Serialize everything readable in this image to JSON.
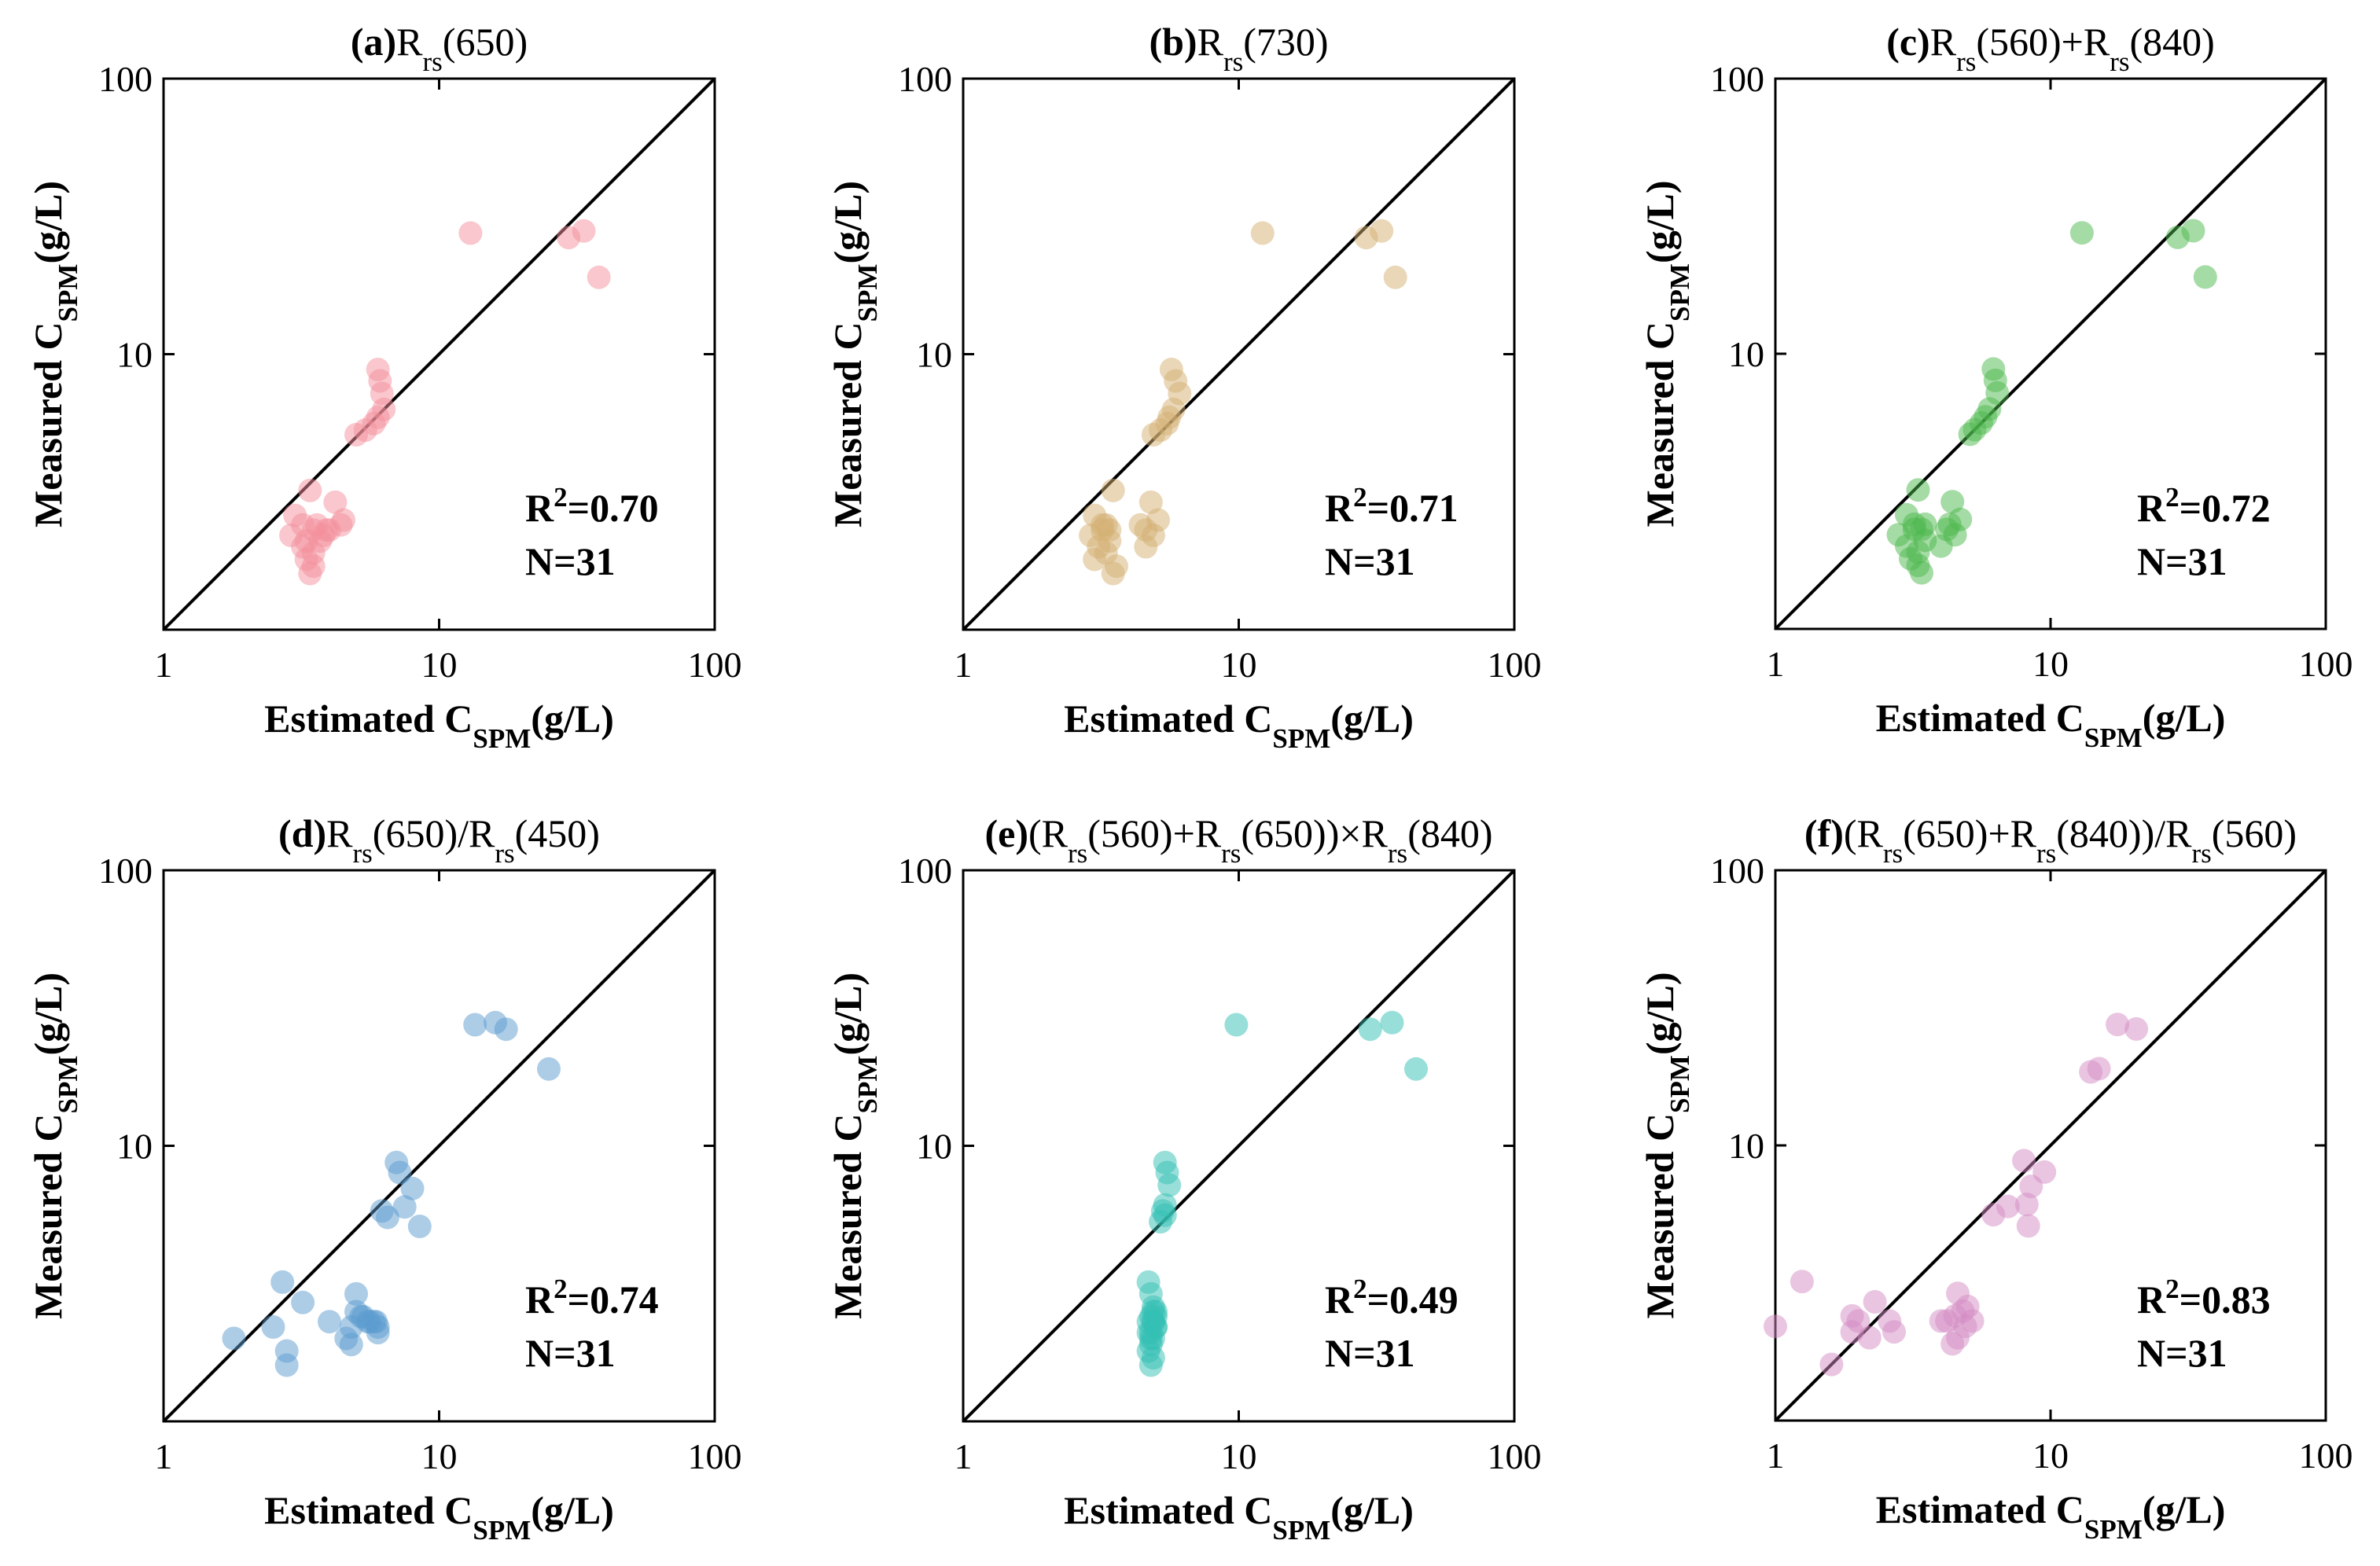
{
  "chart_data": [
    {
      "type": "scatter",
      "panel_label": "(a)",
      "title_parts": [
        {
          "t": "(a)",
          "s": "bold"
        },
        {
          "t": "R",
          "s": "normal"
        },
        {
          "t": "rs",
          "s": "sub"
        },
        {
          "t": "(650)",
          "s": "normal"
        }
      ],
      "xlabel": "Estimated C",
      "xlabel_sub": "SPM",
      "xlabel_unit": "(g/L)",
      "ylabel": "Measured C",
      "ylabel_sub": "SPM",
      "ylabel_unit": "(g/L)",
      "xscale": "log",
      "yscale": "log",
      "xlim": [
        1,
        100
      ],
      "ylim": [
        1,
        100
      ],
      "xticks": [
        {
          "v": 1,
          "label": "1"
        },
        {
          "v": 10,
          "label": "10"
        },
        {
          "v": 100,
          "label": "100"
        }
      ],
      "yticks": [
        {
          "v": 10,
          "label": "10"
        },
        {
          "v": 100,
          "label": "100"
        }
      ],
      "r2_prefix": "R",
      "r2_exp": "2",
      "r2_value": "=0.70",
      "n_text": "N=31",
      "color": "#f4909c",
      "x": [
        13.0,
        29.5,
        33.5,
        38.0,
        6.0,
        6.1,
        6.2,
        6.3,
        6.0,
        5.8,
        5.4,
        5.0,
        3.4,
        4.2,
        3.0,
        3.2,
        3.5,
        3.6,
        4.0,
        3.8,
        4.5,
        4.4,
        3.2,
        3.3,
        3.5,
        3.7,
        2.9,
        3.9,
        3.5,
        3.3,
        3.4
      ],
      "y": [
        27.5,
        26.5,
        28.0,
        19.0,
        8.8,
        8.0,
        7.2,
        6.3,
        5.9,
        5.6,
        5.3,
        5.1,
        3.2,
        2.9,
        2.6,
        2.4,
        2.3,
        2.4,
        2.3,
        2.2,
        2.5,
        2.4,
        2.0,
        1.8,
        1.9,
        2.1,
        2.2,
        2.3,
        1.7,
        2.1,
        1.6
      ]
    },
    {
      "type": "scatter",
      "panel_label": "(b)",
      "title_parts": [
        {
          "t": "(b)",
          "s": "bold"
        },
        {
          "t": "R",
          "s": "normal"
        },
        {
          "t": "rs",
          "s": "sub"
        },
        {
          "t": "(730)",
          "s": "normal"
        }
      ],
      "xlabel": "Estimated C",
      "xlabel_sub": "SPM",
      "xlabel_unit": "(g/L)",
      "ylabel": "Measured C",
      "ylabel_sub": "SPM",
      "ylabel_unit": "(g/L)",
      "xscale": "log",
      "yscale": "log",
      "xlim": [
        1,
        100
      ],
      "ylim": [
        1,
        100
      ],
      "xticks": [
        {
          "v": 1,
          "label": "1"
        },
        {
          "v": 10,
          "label": "10"
        },
        {
          "v": 100,
          "label": "100"
        }
      ],
      "yticks": [
        {
          "v": 10,
          "label": "10"
        },
        {
          "v": 100,
          "label": "100"
        }
      ],
      "r2_prefix": "R",
      "r2_exp": "2",
      "r2_value": "=0.71",
      "n_text": "N=31",
      "color": "#d4b071",
      "x": [
        12.2,
        29.0,
        33.0,
        37.0,
        5.7,
        5.9,
        6.1,
        5.8,
        5.6,
        5.5,
        5.2,
        4.9,
        3.5,
        4.8,
        3.0,
        3.2,
        3.4,
        3.3,
        4.6,
        4.9,
        5.1,
        4.4,
        3.1,
        3.0,
        3.3,
        3.4,
        2.9,
        4.6,
        3.6,
        3.2,
        3.5
      ],
      "y": [
        27.5,
        26.5,
        28.0,
        19.0,
        8.8,
        8.0,
        7.2,
        6.3,
        5.9,
        5.6,
        5.3,
        5.1,
        3.2,
        2.9,
        2.6,
        2.4,
        2.3,
        2.4,
        2.3,
        2.2,
        2.5,
        2.4,
        2.0,
        1.8,
        1.9,
        2.1,
        2.2,
        2.0,
        1.7,
        2.3,
        1.6
      ]
    },
    {
      "type": "scatter",
      "panel_label": "(c)",
      "title_parts": [
        {
          "t": "(c)",
          "s": "bold"
        },
        {
          "t": "R",
          "s": "normal"
        },
        {
          "t": "rs",
          "s": "sub"
        },
        {
          "t": "(560)+R",
          "s": "normal"
        },
        {
          "t": "rs",
          "s": "sub"
        },
        {
          "t": "(840)",
          "s": "normal"
        }
      ],
      "xlabel": "Estimated C",
      "xlabel_sub": "SPM",
      "xlabel_unit": "(g/L)",
      "ylabel": "Measured C",
      "ylabel_sub": "SPM",
      "ylabel_unit": "(g/L)",
      "xscale": "log",
      "yscale": "log",
      "xlim": [
        1,
        100
      ],
      "ylim": [
        1,
        100
      ],
      "xticks": [
        {
          "v": 1,
          "label": "1"
        },
        {
          "v": 10,
          "label": "10"
        },
        {
          "v": 100,
          "label": "100"
        }
      ],
      "yticks": [
        {
          "v": 10,
          "label": "10"
        },
        {
          "v": 100,
          "label": "100"
        }
      ],
      "r2_prefix": "R",
      "r2_exp": "2",
      "r2_value": "=0.72",
      "n_text": "N=31",
      "color": "#4cb84c",
      "x": [
        13.0,
        29.0,
        33.0,
        36.5,
        6.2,
        6.3,
        6.4,
        6.0,
        5.8,
        5.6,
        5.3,
        5.1,
        3.3,
        4.4,
        3.0,
        3.2,
        3.4,
        3.5,
        4.2,
        4.5,
        4.7,
        4.3,
        3.0,
        3.1,
        3.3,
        3.5,
        2.8,
        4.0,
        3.3,
        3.2,
        3.4
      ],
      "y": [
        27.5,
        26.5,
        28.0,
        19.0,
        8.8,
        8.0,
        7.2,
        6.3,
        5.9,
        5.6,
        5.3,
        5.1,
        3.2,
        2.9,
        2.6,
        2.4,
        2.3,
        2.4,
        2.3,
        2.2,
        2.5,
        2.4,
        2.0,
        1.8,
        1.9,
        2.1,
        2.2,
        2.0,
        1.7,
        2.3,
        1.6
      ]
    },
    {
      "type": "scatter",
      "panel_label": "(d)",
      "title_parts": [
        {
          "t": "(d)",
          "s": "bold"
        },
        {
          "t": "R",
          "s": "normal"
        },
        {
          "t": "rs",
          "s": "sub"
        },
        {
          "t": "(650)/R",
          "s": "normal"
        },
        {
          "t": "rs",
          "s": "sub"
        },
        {
          "t": "(450)",
          "s": "normal"
        }
      ],
      "xlabel": "Estimated C",
      "xlabel_sub": "SPM",
      "xlabel_unit": "(g/L)",
      "ylabel": "Measured C",
      "ylabel_sub": "SPM",
      "ylabel_unit": "(g/L)",
      "xscale": "log",
      "yscale": "log",
      "xlim": [
        1,
        100
      ],
      "ylim": [
        1,
        100
      ],
      "xticks": [
        {
          "v": 1,
          "label": "1"
        },
        {
          "v": 10,
          "label": "10"
        },
        {
          "v": 100,
          "label": "100"
        }
      ],
      "yticks": [
        {
          "v": 10,
          "label": "10"
        },
        {
          "v": 100,
          "label": "100"
        }
      ],
      "r2_prefix": "R",
      "r2_exp": "2",
      "r2_value": "=0.74",
      "n_text": "N=31",
      "color": "#5b9bd0",
      "x": [
        13.5,
        16.0,
        17.5,
        25.0,
        7.0,
        7.2,
        8.0,
        7.5,
        6.2,
        6.5,
        8.5,
        2.7,
        3.2,
        2.5,
        1.8,
        2.8,
        2.8,
        4.0,
        4.6,
        4.8,
        5.0,
        5.3,
        5.6,
        5.8,
        6.0,
        5.0,
        6.0,
        4.8,
        5.2,
        5.5,
        5.9
      ],
      "y": [
        27.5,
        28.0,
        26.5,
        19.0,
        8.7,
        8.0,
        7.0,
        6.0,
        5.8,
        5.5,
        5.1,
        3.2,
        2.7,
        2.2,
        2.0,
        1.8,
        1.6,
        2.3,
        2.0,
        1.9,
        2.5,
        2.4,
        2.3,
        2.3,
        2.2,
        2.9,
        2.1,
        2.2,
        2.4,
        2.3,
        2.3
      ]
    },
    {
      "type": "scatter",
      "panel_label": "(e)",
      "title_parts": [
        {
          "t": "(e)",
          "s": "bold"
        },
        {
          "t": "(R",
          "s": "normal"
        },
        {
          "t": "rs",
          "s": "sub"
        },
        {
          "t": "(560)+R",
          "s": "normal"
        },
        {
          "t": "rs",
          "s": "sub"
        },
        {
          "t": "(650))×R",
          "s": "normal"
        },
        {
          "t": "rs",
          "s": "sub"
        },
        {
          "t": "(840)",
          "s": "normal"
        }
      ],
      "xlabel": "Estimated C",
      "xlabel_sub": "SPM",
      "xlabel_unit": "(g/L)",
      "ylabel": "Measured C",
      "ylabel_sub": "SPM",
      "ylabel_unit": "(g/L)",
      "xscale": "log",
      "yscale": "log",
      "xlim": [
        1,
        100
      ],
      "ylim": [
        1,
        100
      ],
      "xticks": [
        {
          "v": 1,
          "label": "1"
        },
        {
          "v": 10,
          "label": "10"
        },
        {
          "v": 100,
          "label": "100"
        }
      ],
      "yticks": [
        {
          "v": 10,
          "label": "10"
        },
        {
          "v": 100,
          "label": "100"
        }
      ],
      "r2_prefix": "R",
      "r2_exp": "2",
      "r2_value": "=0.49",
      "n_text": "N=31",
      "color": "#33bfb3",
      "x": [
        9.8,
        30.0,
        36.0,
        44.0,
        5.4,
        5.5,
        5.6,
        5.4,
        5.3,
        5.2,
        5.4,
        4.7,
        4.8,
        4.9,
        5.0,
        4.8,
        4.9,
        5.0,
        4.7,
        4.8,
        4.9,
        5.0,
        4.8,
        4.7,
        4.9,
        5.0,
        4.8,
        4.9,
        4.7,
        4.8,
        4.9
      ],
      "y": [
        27.5,
        26.5,
        28.0,
        19.0,
        8.7,
        8.0,
        7.2,
        6.1,
        5.8,
        5.3,
        5.6,
        3.2,
        2.9,
        2.6,
        2.5,
        2.4,
        2.3,
        2.2,
        2.1,
        2.0,
        2.3,
        2.4,
        1.9,
        1.8,
        1.7,
        2.2,
        2.1,
        2.5,
        2.3,
        1.6,
        2.0
      ]
    },
    {
      "type": "scatter",
      "panel_label": "(f)",
      "title_parts": [
        {
          "t": "(f)",
          "s": "bold"
        },
        {
          "t": "(R",
          "s": "normal"
        },
        {
          "t": "rs",
          "s": "sub"
        },
        {
          "t": "(650)+R",
          "s": "normal"
        },
        {
          "t": "rs",
          "s": "sub"
        },
        {
          "t": "(840))/R",
          "s": "normal"
        },
        {
          "t": "rs",
          "s": "sub"
        },
        {
          "t": "(560)",
          "s": "normal"
        }
      ],
      "xlabel": "Estimated C",
      "xlabel_sub": "SPM",
      "xlabel_unit": "(g/L)",
      "ylabel": "Measured C",
      "ylabel_sub": "SPM",
      "ylabel_unit": "(g/L)",
      "xscale": "log",
      "yscale": "log",
      "xlim": [
        1,
        100
      ],
      "ylim": [
        1,
        100
      ],
      "xticks": [
        {
          "v": 1,
          "label": "1"
        },
        {
          "v": 10,
          "label": "10"
        },
        {
          "v": 100,
          "label": "100"
        }
      ],
      "yticks": [
        {
          "v": 10,
          "label": "10"
        },
        {
          "v": 100,
          "label": "100"
        }
      ],
      "r2_prefix": "R",
      "r2_exp": "2",
      "r2_value": "=0.83",
      "n_text": "N=31",
      "color": "#d48cc4",
      "x": [
        17.5,
        20.5,
        14.0,
        15.0,
        8.0,
        9.5,
        8.5,
        8.2,
        7.0,
        6.2,
        8.3,
        1.25,
        1.0,
        2.3,
        1.9,
        2.0,
        2.6,
        2.2,
        1.6,
        1.9,
        2.7,
        4.6,
        5.0,
        4.0,
        4.5,
        4.8,
        4.2,
        5.2,
        4.6,
        4.9,
        4.4
      ],
      "y": [
        27.5,
        26.5,
        18.5,
        19.0,
        8.8,
        8.0,
        7.1,
        6.1,
        6.0,
        5.6,
        5.1,
        3.2,
        2.2,
        2.7,
        2.4,
        2.3,
        2.3,
        2.0,
        1.6,
        2.1,
        2.1,
        2.9,
        2.6,
        2.3,
        2.4,
        2.5,
        2.3,
        2.3,
        2.0,
        2.2,
        1.9
      ]
    }
  ]
}
